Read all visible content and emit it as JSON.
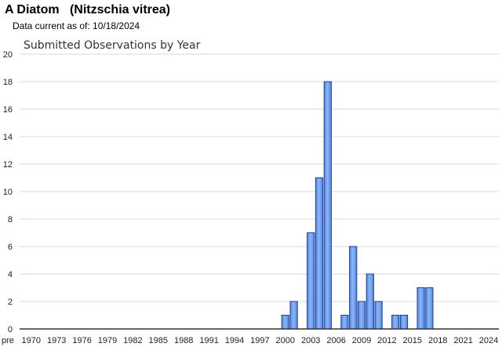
{
  "header": {
    "title": "A Diatom   (Nitzschia vitrea)",
    "data_current": "Data current as of: 10/18/2024"
  },
  "colors": {
    "bar_fill": "#4f86e8",
    "bar_highlight": "#8fb6f5",
    "bar_stroke": "#1f3f8f",
    "grid": "#d9d9d9",
    "axis": "#333333"
  },
  "chart_data": {
    "type": "bar",
    "title": "Submitted Observations by Year",
    "xlabel": "",
    "ylabel": "",
    "ylim": [
      0,
      20
    ],
    "yticks": [
      0,
      2,
      4,
      6,
      8,
      10,
      12,
      14,
      16,
      18,
      20
    ],
    "grid": true,
    "categories": [
      "pre",
      "1970",
      "1971",
      "1972",
      "1973",
      "1974",
      "1975",
      "1976",
      "1977",
      "1978",
      "1979",
      "1980",
      "1981",
      "1982",
      "1983",
      "1984",
      "1985",
      "1986",
      "1987",
      "1988",
      "1989",
      "1990",
      "1991",
      "1992",
      "1993",
      "1994",
      "1995",
      "1996",
      "1997",
      "1998",
      "1999",
      "2000",
      "2001",
      "2002",
      "2003",
      "2004",
      "2005",
      "2006",
      "2007",
      "2008",
      "2009",
      "2010",
      "2011",
      "2012",
      "2013",
      "2014",
      "2015",
      "2016",
      "2017",
      "2018",
      "2019",
      "2020",
      "2021",
      "2022",
      "2023",
      "2024"
    ],
    "values": [
      0,
      0,
      0,
      0,
      0,
      0,
      0,
      0,
      0,
      0,
      0,
      0,
      0,
      0,
      0,
      0,
      0,
      0,
      0,
      0,
      0,
      0,
      0,
      0,
      0,
      0,
      0,
      0,
      0,
      0,
      0,
      1,
      2,
      0,
      7,
      11,
      18,
      0,
      1,
      6,
      2,
      4,
      2,
      0,
      1,
      1,
      0,
      3,
      3,
      0,
      0,
      0,
      0,
      0,
      0,
      0
    ],
    "xtick_labels": [
      "pre",
      "1970",
      "1973",
      "1976",
      "1979",
      "1982",
      "1985",
      "1988",
      "1991",
      "1994",
      "1997",
      "2000",
      "2003",
      "2006",
      "2009",
      "2012",
      "2015",
      "2018",
      "2021",
      "2024"
    ]
  }
}
